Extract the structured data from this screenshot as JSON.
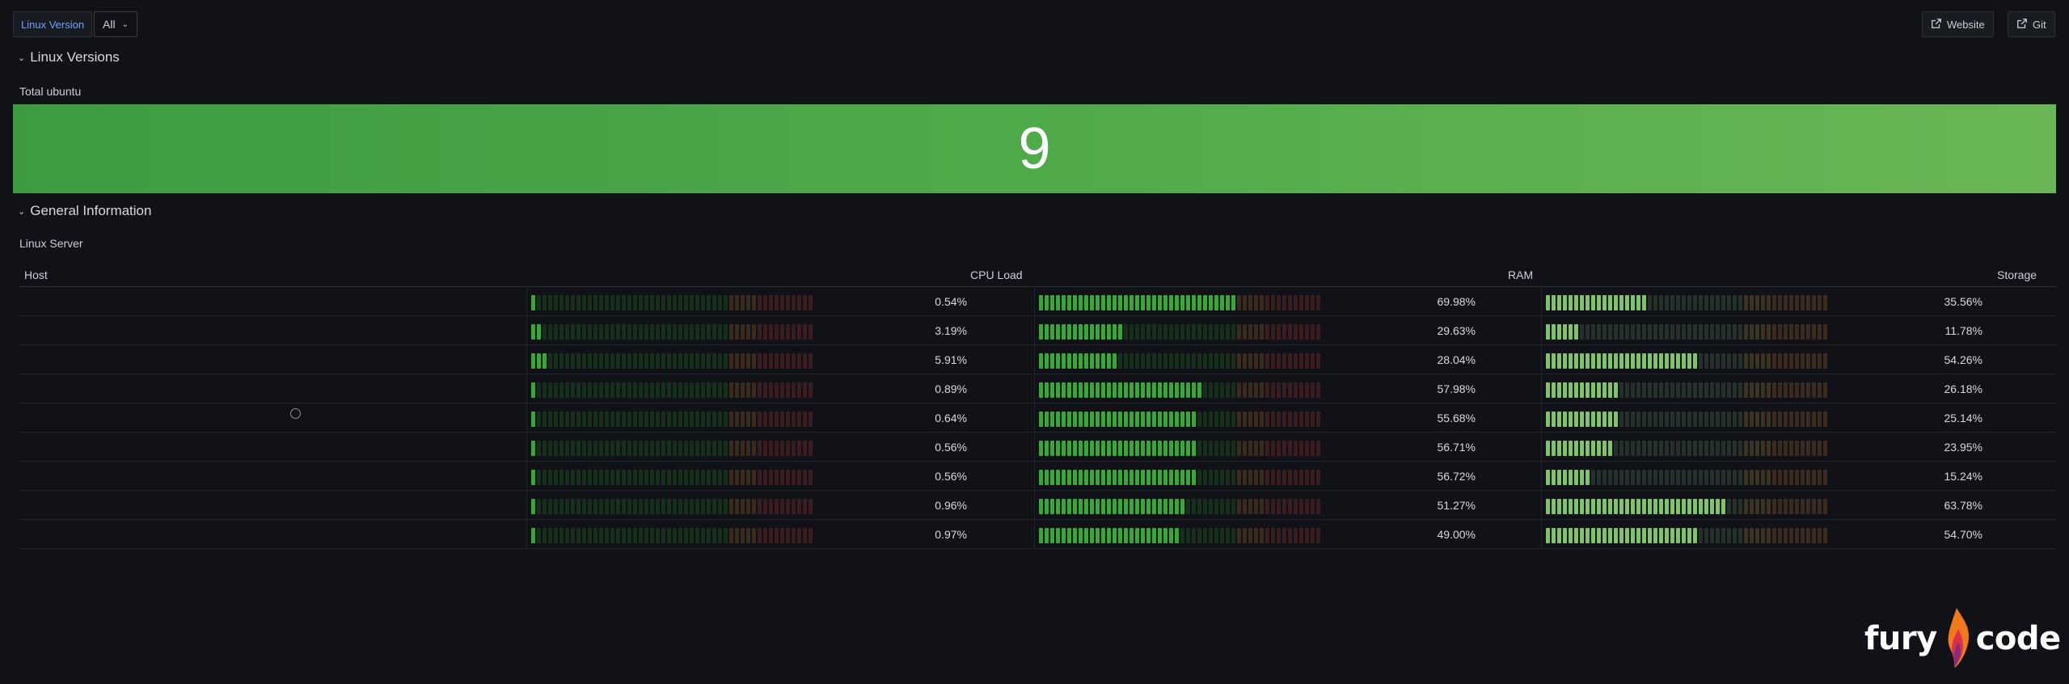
{
  "top": {
    "variable_label": "Linux Version",
    "variable_value": "All",
    "links": [
      {
        "label": "Website"
      },
      {
        "label": "Git"
      }
    ]
  },
  "rows": [
    {
      "title": "Linux Versions"
    },
    {
      "title": "General Information"
    }
  ],
  "stat_panel": {
    "title": "Total ubuntu",
    "value": "9",
    "color": "#4caf50"
  },
  "table_panel": {
    "title": "Linux Server",
    "columns": {
      "host": "Host",
      "cpu": "CPU Load",
      "ram": "RAM",
      "storage": "Storage"
    },
    "rows": [
      {
        "host": "",
        "cpu": "0.54%",
        "ram": "69.98%",
        "storage": "35.56%"
      },
      {
        "host": "",
        "cpu": "3.19%",
        "ram": "29.63%",
        "storage": "11.78%"
      },
      {
        "host": "",
        "cpu": "5.91%",
        "ram": "28.04%",
        "storage": "54.26%"
      },
      {
        "host": "",
        "cpu": "0.89%",
        "ram": "57.98%",
        "storage": "26.18%"
      },
      {
        "host": "",
        "cpu": "0.64%",
        "ram": "55.68%",
        "storage": "25.14%"
      },
      {
        "host": "",
        "cpu": "0.56%",
        "ram": "56.71%",
        "storage": "23.95%"
      },
      {
        "host": "",
        "cpu": "0.56%",
        "ram": "56.72%",
        "storage": "15.24%"
      },
      {
        "host": "",
        "cpu": "0.96%",
        "ram": "51.27%",
        "storage": "63.78%"
      },
      {
        "host": "",
        "cpu": "0.97%",
        "ram": "49.00%",
        "storage": "54.70%"
      }
    ]
  },
  "logo": {
    "left": "fury",
    "right": "code",
    "icon": "flame-icon"
  },
  "colors": {
    "background": "#111217",
    "gauge_green": "#37a737",
    "gauge_storage": "#7dc26a",
    "gauge_red_dim": "#3a1c1c",
    "accent": "#6e9fff"
  }
}
